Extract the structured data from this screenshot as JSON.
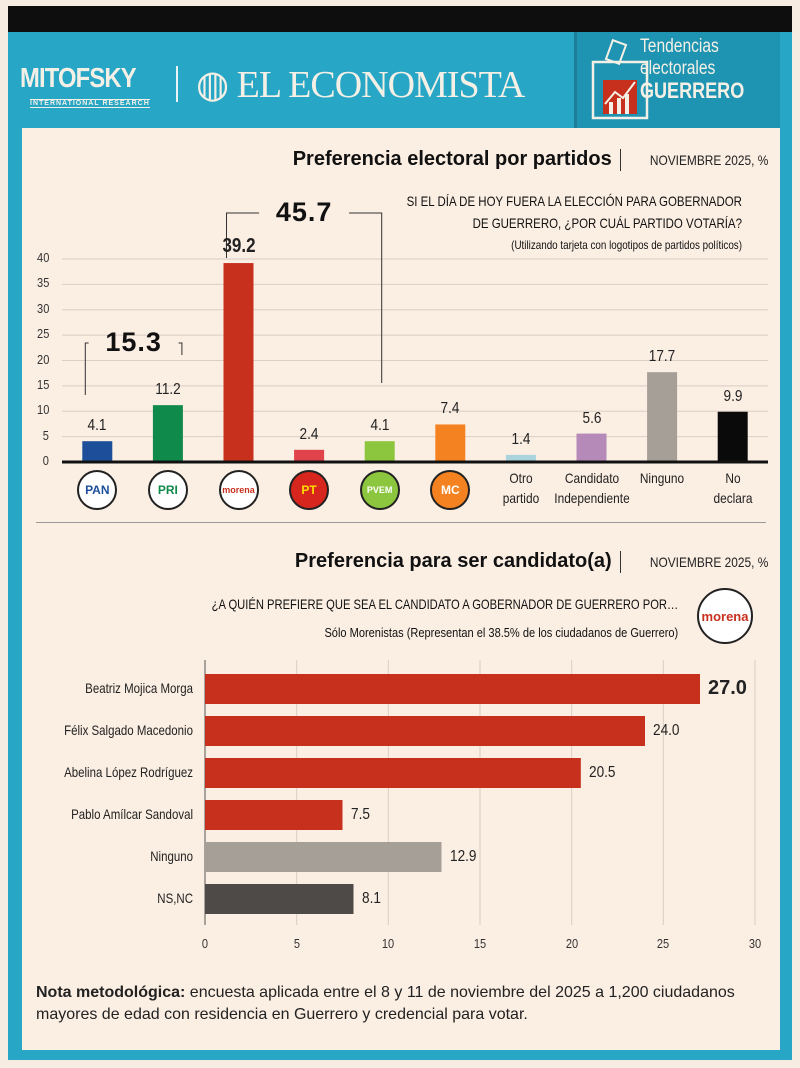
{
  "header": {
    "mitofsky": "MITOFSKY",
    "mitofsky_sub": "INTERNATIONAL RESEARCH",
    "economista": "EL ECONOMISTA",
    "section": [
      "Tendencias",
      "electorales",
      "GUERRERO"
    ]
  },
  "colors": {
    "frame": "#27a6c6",
    "panel": "#fbeee3",
    "morena": "#c8301e"
  },
  "chart_data": [
    {
      "type": "bar",
      "title": "Preferencia electoral por partidos",
      "title_note": "NOVIEMBRE 2025, %",
      "question": [
        "SI EL DÍA DE HOY FUERA LA ELECCIÓN PARA GOBERNADOR",
        "DE GUERRERO, ¿POR CUÁL PARTIDO VOTARÍA?"
      ],
      "subnote": "(Utilizando tarjeta con logotipos de partidos políticos)",
      "categories": [
        "PAN",
        "PRI",
        "morena",
        "PT",
        "PVEM",
        "MC",
        "Otro partido",
        "Candidato Independiente",
        "Ninguno",
        "No declara"
      ],
      "category_display": [
        {
          "logo": "PAN"
        },
        {
          "logo": "PRI"
        },
        {
          "logo": "morena"
        },
        {
          "logo": "PT"
        },
        {
          "logo": "PVEM"
        },
        {
          "logo": "MC"
        },
        {
          "label": [
            "Otro",
            "partido"
          ]
        },
        {
          "label": [
            "Candidato",
            "Independiente"
          ]
        },
        {
          "label": [
            "Ninguno",
            ""
          ]
        },
        {
          "label": [
            "No",
            "declara"
          ]
        }
      ],
      "values": [
        4.1,
        11.2,
        39.2,
        2.4,
        4.1,
        7.4,
        1.4,
        5.6,
        17.7,
        9.9
      ],
      "value_labels": [
        "4.1",
        "11.2",
        "39.2",
        "2.4",
        "4.1",
        "7.4",
        "1.4",
        "5.6",
        "17.7",
        "9.9"
      ],
      "colors": [
        "#1d4e9a",
        "#0f8a4a",
        "#c8301e",
        "#e0444a",
        "#8cc63f",
        "#f58220",
        "#a9d4de",
        "#b68ab8",
        "#a59f97",
        "#0a0a0a"
      ],
      "ylim": [
        0,
        40
      ],
      "yticks": [
        "0",
        "5",
        "10",
        "15",
        "20",
        "25",
        "30",
        "35",
        "40"
      ],
      "grid": true,
      "annotations": [
        {
          "text": "15.3",
          "spans": [
            "PAN",
            "PRI"
          ]
        },
        {
          "text": "45.7",
          "spans": [
            "morena",
            "PVEM"
          ]
        }
      ]
    },
    {
      "type": "bar",
      "orientation": "horizontal",
      "title": "Preferencia para ser candidato(a)",
      "title_note": "NOVIEMBRE 2025, %",
      "question": "¿A QUIÉN PREFIERE QUE SEA EL CANDIDATO A GOBERNADOR DE GUERRERO POR…",
      "party_logo": "morena",
      "subnote": "Sólo Morenistas (Representan el 38.5% de los ciudadanos de Guerrero)",
      "categories": [
        "Beatriz Mojica Morga",
        "Félix Salgado Macedonio",
        "Abelina López Rodríguez",
        "Pablo Amílcar Sandoval",
        "Ninguno",
        "NS,NC"
      ],
      "values": [
        27.0,
        24.0,
        20.5,
        7.5,
        12.9,
        8.1
      ],
      "value_labels": [
        "27.0",
        "24.0",
        "20.5",
        "7.5",
        "12.9",
        "8.1"
      ],
      "colors": [
        "#c8301e",
        "#c8301e",
        "#c8301e",
        "#c8301e",
        "#a59f97",
        "#4d4a47"
      ],
      "xlim": [
        0,
        30
      ],
      "xticks": [
        "0",
        "5",
        "10",
        "15",
        "20",
        "25",
        "30"
      ],
      "grid": true
    }
  ],
  "note": {
    "label": "Nota metodológica:",
    "text": " encuesta aplicada entre el 8 y 11 de noviembre del 2025 a 1,200 ciudadanos mayores de edad con residencia en Guerrero y credencial para votar."
  }
}
